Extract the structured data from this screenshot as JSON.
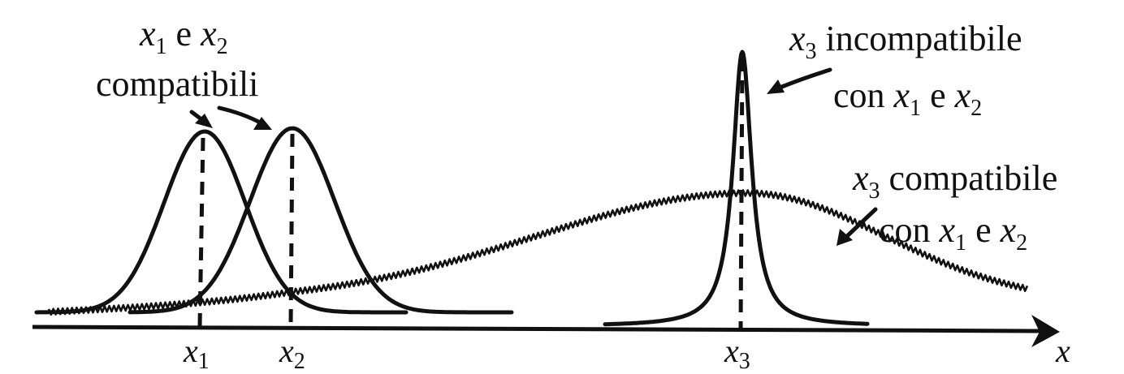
{
  "labels": {
    "compatible_12": {
      "line1": [
        "x",
        "1",
        " e ",
        "x",
        "2"
      ],
      "line2": "compatibili"
    },
    "incompatible_3": {
      "line1": [
        "x",
        "3",
        " incompatibile"
      ],
      "line2": [
        "con ",
        "x",
        "1",
        " e ",
        "x",
        "2"
      ]
    },
    "compatible_3": {
      "line1": [
        "x",
        "3",
        " compatibile"
      ],
      "line2": [
        "con ",
        "x",
        "1",
        " e ",
        "x",
        "2"
      ]
    }
  },
  "axis": {
    "variable": "x",
    "ticks": [
      {
        "base": "x",
        "sub": "1"
      },
      {
        "base": "x",
        "sub": "2"
      },
      {
        "base": "x",
        "sub": "3"
      }
    ]
  }
}
